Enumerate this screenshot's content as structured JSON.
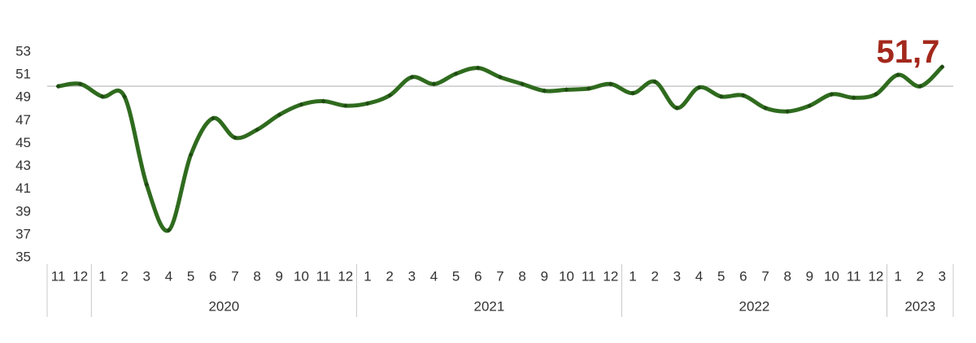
{
  "chart_data": {
    "type": "line",
    "category_groups": [
      {
        "name": null,
        "categories": [
          "11",
          "12"
        ]
      },
      {
        "name": "2020",
        "categories": [
          "1",
          "2",
          "3",
          "4",
          "5",
          "6",
          "7",
          "8",
          "9",
          "10",
          "11",
          "12"
        ]
      },
      {
        "name": "2021",
        "categories": [
          "1",
          "2",
          "3",
          "4",
          "5",
          "6",
          "7",
          "8",
          "9",
          "10",
          "11",
          "12"
        ]
      },
      {
        "name": "2022",
        "categories": [
          "1",
          "2",
          "3",
          "4",
          "5",
          "6",
          "7",
          "8",
          "9",
          "10",
          "11",
          "12"
        ]
      },
      {
        "name": "2023",
        "categories": [
          "1",
          "2",
          "3"
        ]
      }
    ],
    "series": [
      {
        "color": "#2f6b1e",
        "values": [
          50.0,
          50.2,
          49.1,
          49.1,
          41.4,
          37.4,
          44.0,
          47.2,
          45.5,
          46.2,
          47.5,
          48.4,
          48.7,
          48.3,
          48.5,
          49.2,
          50.8,
          50.2,
          51.1,
          51.6,
          50.8,
          50.2,
          49.6,
          49.7,
          49.8,
          50.2,
          49.4,
          50.4,
          48.1,
          49.9,
          49.1,
          49.2,
          48.1,
          47.8,
          48.3,
          49.3,
          49.0,
          49.3,
          51.0,
          50.0,
          51.7
        ],
        "value_labels": [
          null,
          null,
          null,
          null,
          null,
          null,
          null,
          null,
          null,
          null,
          null,
          null,
          null,
          null,
          null,
          null,
          null,
          null,
          null,
          null,
          null,
          null,
          null,
          null,
          null,
          null,
          null,
          null,
          null,
          null,
          null,
          null,
          null,
          null,
          null,
          null,
          null,
          null,
          null,
          null,
          "51,7"
        ],
        "label_color": "#a3281c"
      }
    ],
    "reference_line": 50,
    "ylim": [
      35,
      53
    ],
    "yticks": [
      35,
      37,
      39,
      41,
      43,
      45,
      47,
      49,
      51,
      53
    ]
  }
}
